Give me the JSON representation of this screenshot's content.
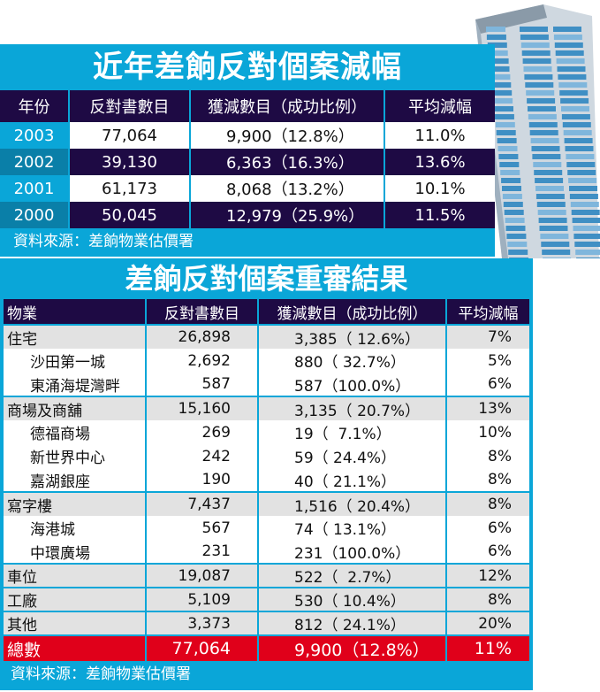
{
  "table1": {
    "title": "近年差餉反對個案減幅",
    "headers": [
      "年份",
      "反對書數目",
      "獲減數目（成功比例）",
      "平均減幅"
    ],
    "rows": [
      [
        "2003",
        "77,064",
        "9,900（12.8%）",
        "11.0%"
      ],
      [
        "2002",
        "39,130",
        "6,363（16.3%）",
        "13.6%"
      ],
      [
        "2001",
        "61,173",
        "8,068（13.2%）",
        "10.1%"
      ],
      [
        "2000",
        "50,045",
        "12,979（25.9%）",
        "11.5%"
      ]
    ],
    "source": "資料來源：差餉物業估價署"
  },
  "table2": {
    "title": "差餉反對個案重審結果",
    "headers": [
      "物業",
      "反對書數目",
      "獲減數目（成功比例）",
      "平均減幅"
    ],
    "rows": [
      [
        "住宅",
        "26,898",
        "3,385（ 12.6%）",
        "7%"
      ],
      [
        "沙田第一城",
        "2,692",
        "880（ 32.7%）",
        "5%"
      ],
      [
        "東涌海堤灣畔",
        "587",
        "587（100.0%）",
        "6%"
      ],
      [
        "商場及商舖",
        "15,160",
        "3,135（ 20.7%）",
        "13%"
      ],
      [
        "德福商場",
        "269",
        "19（  7.1%）",
        "10%"
      ],
      [
        "新世界中心",
        "242",
        "59（ 24.4%）",
        "8%"
      ],
      [
        "嘉湖銀座",
        "190",
        "40（ 21.1%）",
        "8%"
      ],
      [
        "寫字樓",
        "7,437",
        "1,516（ 20.4%）",
        "8%"
      ],
      [
        "海港城",
        "567",
        "74（ 13.1%）",
        "6%"
      ],
      [
        "中環廣場",
        "231",
        "231（100.0%）",
        "6%"
      ],
      [
        "車位",
        "19,087",
        "522（  2.7%）",
        "12%"
      ],
      [
        "工廠",
        "5,109",
        "530（ 10.4%）",
        "8%"
      ],
      [
        "其他",
        "3,373",
        "812（ 24.1%）",
        "20%"
      ]
    ],
    "total": [
      "總數",
      "77,064",
      "9,900（12.8%）",
      "11%"
    ],
    "source": "資料來源：差餉物業估價署"
  },
  "colors": {
    "blue": "#0aa6d8",
    "purple": "#1e0a44",
    "red": "#e0001a"
  }
}
